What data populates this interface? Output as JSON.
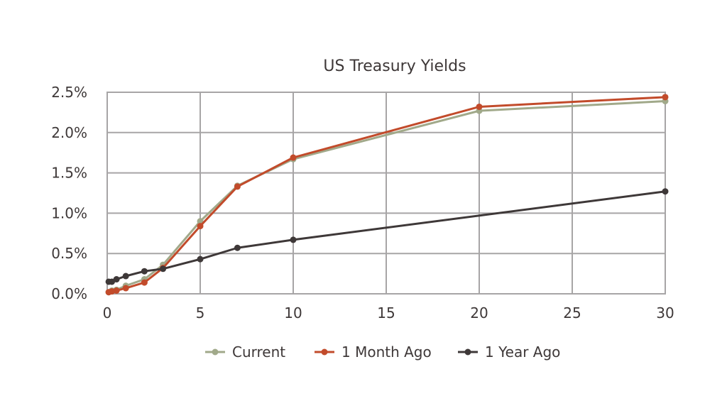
{
  "chart_data": {
    "type": "line",
    "title": "US Treasury Yields",
    "xlabel": "",
    "ylabel": "",
    "xlim": [
      0,
      30
    ],
    "ylim": [
      0,
      2.5
    ],
    "x_ticks": [
      0,
      5,
      10,
      15,
      20,
      25,
      30
    ],
    "y_ticks": [
      0,
      0.5,
      1.0,
      1.5,
      2.0,
      2.5
    ],
    "y_tick_labels": [
      "0.0%",
      "0.5%",
      "1.0%",
      "1.5%",
      "2.0%",
      "2.5%"
    ],
    "grid": true,
    "legend_position": "bottom",
    "series": [
      {
        "name": "Current",
        "color": "#a1a98a",
        "points": [
          [
            0.08,
            0.02
          ],
          [
            0.25,
            0.04
          ],
          [
            0.5,
            0.05
          ],
          [
            1,
            0.1
          ],
          [
            2,
            0.18
          ],
          [
            3,
            0.36
          ],
          [
            5,
            0.9
          ],
          [
            7,
            1.34
          ],
          [
            10,
            1.67
          ],
          [
            20,
            2.27
          ],
          [
            30,
            2.39
          ]
        ]
      },
      {
        "name": "1 Month Ago",
        "color": "#c24b2b",
        "points": [
          [
            0.08,
            0.02
          ],
          [
            0.25,
            0.03
          ],
          [
            0.5,
            0.04
          ],
          [
            1,
            0.07
          ],
          [
            2,
            0.14
          ],
          [
            3,
            0.32
          ],
          [
            5,
            0.84
          ],
          [
            7,
            1.33
          ],
          [
            10,
            1.69
          ],
          [
            20,
            2.32
          ],
          [
            30,
            2.44
          ]
        ]
      },
      {
        "name": "1 Year Ago",
        "color": "#3e3838",
        "points": [
          [
            0.08,
            0.15
          ],
          [
            0.25,
            0.15
          ],
          [
            0.5,
            0.18
          ],
          [
            1,
            0.22
          ],
          [
            2,
            0.28
          ],
          [
            3,
            0.31
          ],
          [
            5,
            0.43
          ],
          [
            7,
            0.57
          ],
          [
            10,
            0.67
          ],
          [
            30,
            1.27
          ]
        ]
      }
    ]
  }
}
